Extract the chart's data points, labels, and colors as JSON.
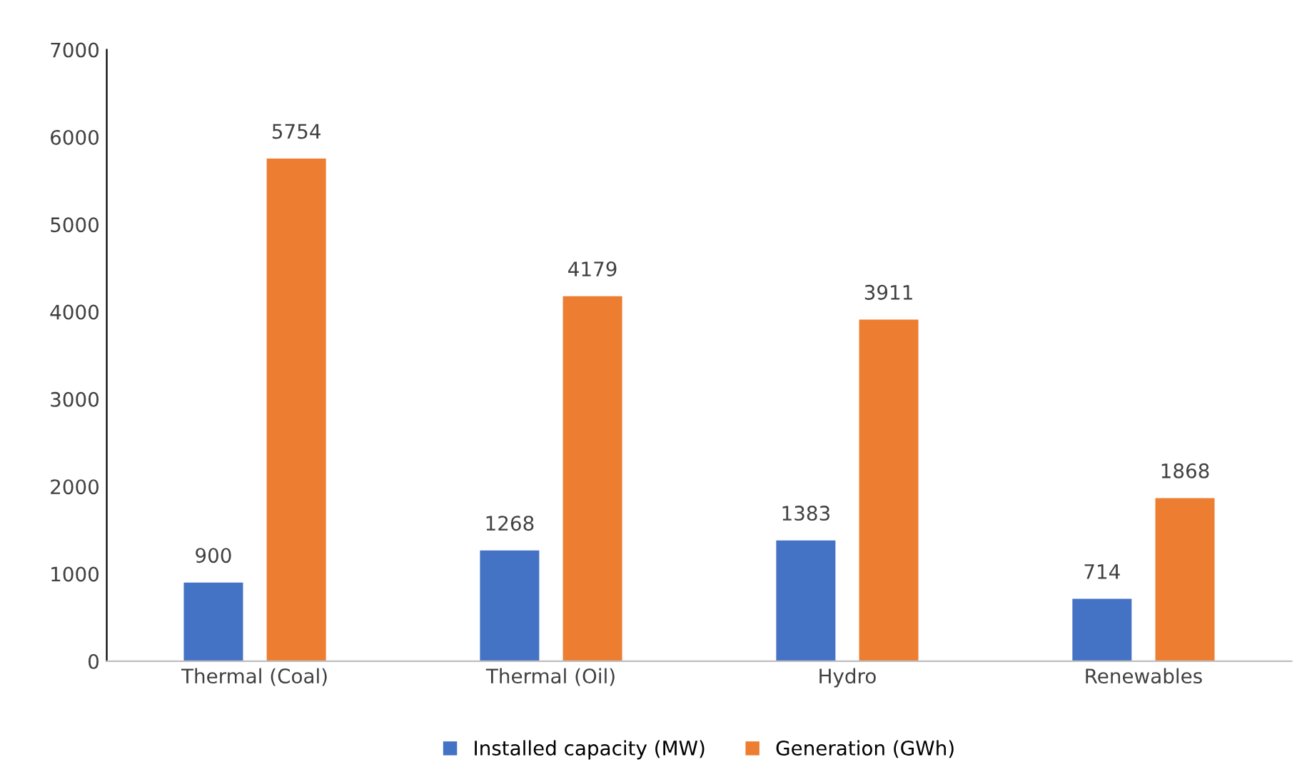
{
  "chart_data": {
    "type": "bar",
    "categories": [
      "Thermal (Coal)",
      "Thermal (Oil)",
      "Hydro",
      "Renewables"
    ],
    "series": [
      {
        "name": "Installed capacity (MW)",
        "color": "#4472c4",
        "values": [
          900,
          1268,
          1383,
          714
        ]
      },
      {
        "name": "Generation (GWh)",
        "color": "#ed7d31",
        "values": [
          5754,
          4179,
          3911,
          1868
        ]
      }
    ],
    "ylim": [
      0,
      7000
    ],
    "yticks": [
      0,
      1000,
      2000,
      3000,
      4000,
      5000,
      6000,
      7000
    ],
    "grid": false,
    "legend": "bottom",
    "data_labels": true
  }
}
